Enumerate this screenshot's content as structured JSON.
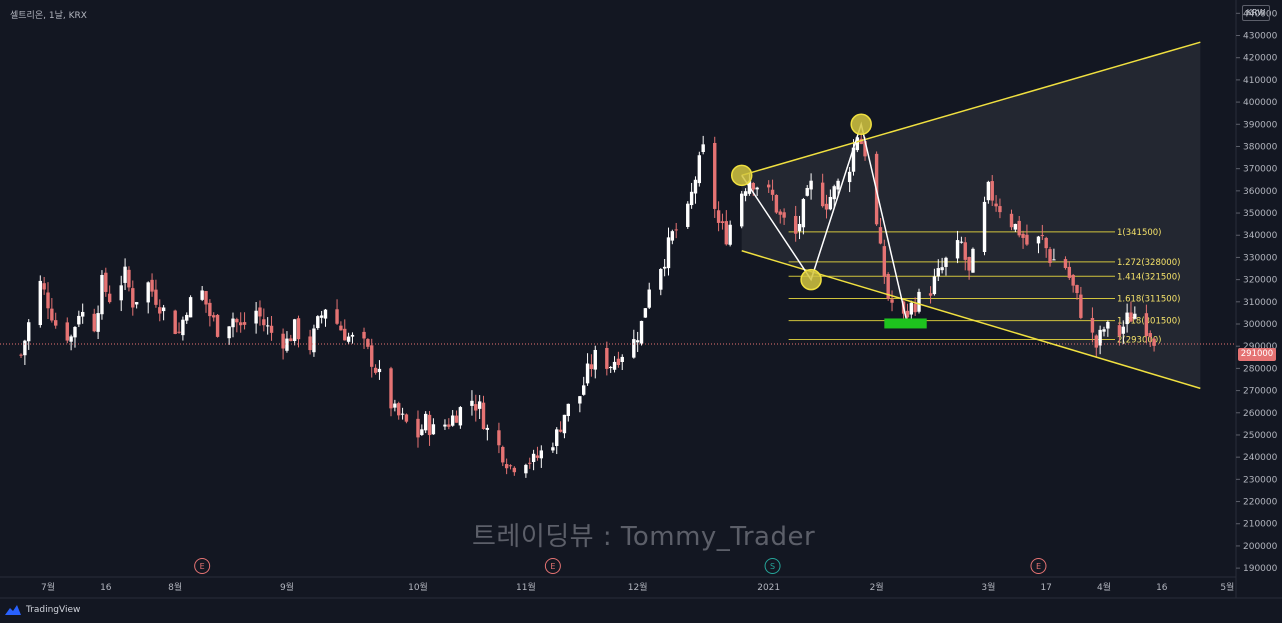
{
  "legend": {
    "symbol": "셀트리온",
    "interval": "1날",
    "exchange": "KRX"
  },
  "currency_button": "KRW",
  "watermark": "트레이딩뷰 : Tommy_Trader",
  "brand": "TradingView",
  "last_price_label": "291000",
  "colors": {
    "background": "#131722",
    "up": "#ffffff",
    "down": "#e57373",
    "yellow": "#f0e040",
    "green": "#1ec31e",
    "price_line": "#e57373"
  },
  "chart_data": {
    "type": "candlestick",
    "yaxis": {
      "range": [
        186000,
        446000
      ],
      "ticks": [
        440000,
        430000,
        420000,
        410000,
        400000,
        390000,
        380000,
        370000,
        360000,
        350000,
        340000,
        330000,
        320000,
        310000,
        300000,
        290000,
        280000,
        270000,
        260000,
        250000,
        240000,
        230000,
        220000,
        210000,
        200000,
        190000
      ]
    },
    "xaxis": {
      "labels": [
        {
          "label": "7월",
          "date": "2020-07-01"
        },
        {
          "label": "16",
          "date": "2020-07-16"
        },
        {
          "label": "8월",
          "date": "2020-08-03"
        },
        {
          "label": "9월",
          "date": "2020-09-01"
        },
        {
          "label": "10월",
          "date": "2020-10-05"
        },
        {
          "label": "11월",
          "date": "2020-11-02"
        },
        {
          "label": "12월",
          "date": "2020-12-01"
        },
        {
          "label": "2021",
          "date": "2021-01-04"
        },
        {
          "label": "2월",
          "date": "2021-02-01"
        },
        {
          "label": "3월",
          "date": "2021-03-02"
        },
        {
          "label": "17",
          "date": "2021-03-17"
        },
        {
          "label": "4월",
          "date": "2021-04-01"
        },
        {
          "label": "16",
          "date": "2021-04-16"
        },
        {
          "label": "5월",
          "date": "2021-05-03"
        }
      ]
    },
    "last_price": 291000,
    "price_path": [
      [
        "2020-06-24",
        286000
      ],
      [
        "2020-06-26",
        300000
      ],
      [
        "2020-06-29",
        318000
      ],
      [
        "2020-07-01",
        310000
      ],
      [
        "2020-07-03",
        300000
      ],
      [
        "2020-07-07",
        294000
      ],
      [
        "2020-07-09",
        306000
      ],
      [
        "2020-07-13",
        300000
      ],
      [
        "2020-07-15",
        318000
      ],
      [
        "2020-07-17",
        312000
      ],
      [
        "2020-07-21",
        322000
      ],
      [
        "2020-07-23",
        310000
      ],
      [
        "2020-07-27",
        318000
      ],
      [
        "2020-07-29",
        312000
      ],
      [
        "2020-07-31",
        306000
      ],
      [
        "2020-08-04",
        296000
      ],
      [
        "2020-08-06",
        308000
      ],
      [
        "2020-08-10",
        314000
      ],
      [
        "2020-08-12",
        304000
      ],
      [
        "2020-08-14",
        298000
      ],
      [
        "2020-08-18",
        303000
      ],
      [
        "2020-08-20",
        298000
      ],
      [
        "2020-08-24",
        306000
      ],
      [
        "2020-08-26",
        300000
      ],
      [
        "2020-08-28",
        296000
      ],
      [
        "2020-09-01",
        292000
      ],
      [
        "2020-09-03",
        298000
      ],
      [
        "2020-09-07",
        290000
      ],
      [
        "2020-09-09",
        300000
      ],
      [
        "2020-09-11",
        308000
      ],
      [
        "2020-09-15",
        298000
      ],
      [
        "2020-09-17",
        294000
      ],
      [
        "2020-09-21",
        290000
      ],
      [
        "2020-09-23",
        284000
      ],
      [
        "2020-09-25",
        276000
      ],
      [
        "2020-09-29",
        260000
      ],
      [
        "2020-10-05",
        250000
      ],
      [
        "2020-10-07",
        256000
      ],
      [
        "2020-10-09",
        252000
      ],
      [
        "2020-10-13",
        256000
      ],
      [
        "2020-10-15",
        260000
      ],
      [
        "2020-10-19",
        266000
      ],
      [
        "2020-10-21",
        262000
      ],
      [
        "2020-10-23",
        252000
      ],
      [
        "2020-10-27",
        242000
      ],
      [
        "2020-10-29",
        236000
      ],
      [
        "2020-11-02",
        240000
      ],
      [
        "2020-11-04",
        238000
      ],
      [
        "2020-11-06",
        242000
      ],
      [
        "2020-11-10",
        250000
      ],
      [
        "2020-11-12",
        260000
      ],
      [
        "2020-11-16",
        268000
      ],
      [
        "2020-11-18",
        278000
      ],
      [
        "2020-11-20",
        285000
      ],
      [
        "2020-11-24",
        282000
      ],
      [
        "2020-11-26",
        286000
      ],
      [
        "2020-11-30",
        292000
      ],
      [
        "2020-12-02",
        300000
      ],
      [
        "2020-12-04",
        318000
      ],
      [
        "2020-12-08",
        330000
      ],
      [
        "2020-12-10",
        340000
      ],
      [
        "2020-12-14",
        350000
      ],
      [
        "2020-12-16",
        366000
      ],
      [
        "2020-12-18",
        378000
      ],
      [
        "2020-12-22",
        345000
      ],
      [
        "2020-12-24",
        340000
      ],
      [
        "2020-12-28",
        360000
      ],
      [
        "2020-12-30",
        366000
      ],
      [
        "2021-01-05",
        357000
      ],
      [
        "2021-01-07",
        348000
      ],
      [
        "2021-01-11",
        340000
      ],
      [
        "2021-01-13",
        352000
      ],
      [
        "2021-01-15",
        362000
      ],
      [
        "2021-01-19",
        355000
      ],
      [
        "2021-01-21",
        360000
      ],
      [
        "2021-01-25",
        372000
      ],
      [
        "2021-01-27",
        386000
      ],
      [
        "2021-01-29",
        378000
      ],
      [
        "2021-02-02",
        332000
      ],
      [
        "2021-02-04",
        312000
      ],
      [
        "2021-02-08",
        302000
      ],
      [
        "2021-02-10",
        308000
      ],
      [
        "2021-02-15",
        316000
      ],
      [
        "2021-02-17",
        322000
      ],
      [
        "2021-02-19",
        328000
      ],
      [
        "2021-02-23",
        336000
      ],
      [
        "2021-02-25",
        322000
      ],
      [
        "2021-03-02",
        360000
      ],
      [
        "2021-03-04",
        355000
      ],
      [
        "2021-03-08",
        346000
      ],
      [
        "2021-03-10",
        342000
      ],
      [
        "2021-03-12",
        336000
      ],
      [
        "2021-03-16",
        338000
      ],
      [
        "2021-03-18",
        330000
      ],
      [
        "2021-03-22",
        326000
      ],
      [
        "2021-03-24",
        316000
      ],
      [
        "2021-03-26",
        306000
      ],
      [
        "2021-03-30",
        290000
      ],
      [
        "2021-04-01",
        298000
      ],
      [
        "2021-04-05",
        296000
      ],
      [
        "2021-04-07",
        302000
      ],
      [
        "2021-04-09",
        305000
      ],
      [
        "2021-04-13",
        297000
      ],
      [
        "2021-04-15",
        291000
      ]
    ],
    "fib_levels": [
      {
        "label": "1(341500)",
        "value": 341500
      },
      {
        "label": "1.272(328000)",
        "value": 328000
      },
      {
        "label": "1.414(321500)",
        "value": 321500
      },
      {
        "label": "1.618(311500)",
        "value": 311500
      },
      {
        "label": "1.818(301500)",
        "value": 301500
      },
      {
        "label": "2(293000)",
        "value": 293000
      }
    ],
    "fib_start_date": "2021-02-01",
    "fib_end_date": "2021-04-26",
    "triangle": {
      "upper": [
        [
          "2020-12-28",
          367000
        ],
        [
          "2021-04-26",
          427000
        ]
      ],
      "lower": [
        [
          "2020-12-28",
          333000
        ],
        [
          "2021-04-26",
          271000
        ]
      ]
    },
    "pattern_points": [
      [
        "2020-12-28",
        367000
      ],
      [
        "2021-01-15",
        320000
      ],
      [
        "2021-01-28",
        390000
      ],
      [
        "2021-02-09",
        300000
      ]
    ],
    "pattern_circles": [
      [
        "2020-12-28",
        367000
      ],
      [
        "2021-01-15",
        320000
      ],
      [
        "2021-01-28",
        390000
      ]
    ],
    "green_zone": {
      "date_from": "2021-02-03",
      "date_to": "2021-02-14",
      "price_from": 298000,
      "price_to": 302500
    },
    "event_markers": [
      {
        "label": "E",
        "date": "2020-08-10",
        "color": "#e57373"
      },
      {
        "label": "E",
        "date": "2020-11-09",
        "color": "#e57373"
      },
      {
        "label": "S",
        "date": "2021-01-05",
        "color": "#26a69a"
      },
      {
        "label": "E",
        "date": "2021-03-15",
        "color": "#e57373"
      }
    ]
  }
}
